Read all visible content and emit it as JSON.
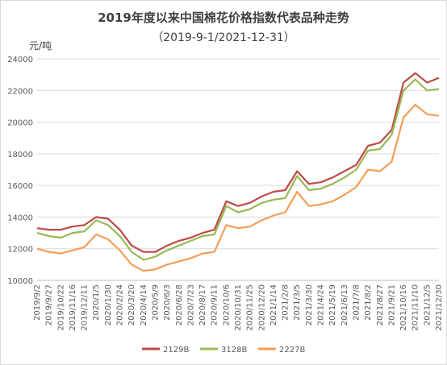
{
  "chart_data": {
    "type": "line",
    "title": "2019年度以来中国棉花价格指数代表品种走势",
    "subtitle": "（2019-9-1/2021-12-31）",
    "ylabel": "元/吨",
    "ylim": [
      10000,
      24000
    ],
    "yticks": [
      10000,
      12000,
      14000,
      16000,
      18000,
      20000,
      22000,
      24000
    ],
    "grid": true,
    "legend_position": "bottom",
    "categories": [
      "2019/9/2",
      "2019/9/27",
      "2019/10/22",
      "2019/11/16",
      "2019/12/11",
      "2020/1/5",
      "2020/1/30",
      "2020/2/24",
      "2020/3/20",
      "2020/4/14",
      "2020/5/9",
      "2020/6/3",
      "2020/6/28",
      "2020/7/23",
      "2020/8/17",
      "2020/9/11",
      "2020/10/6",
      "2020/10/31",
      "2020/11/25",
      "2020/12/20",
      "2021/1/14",
      "2021/2/8",
      "2021/3/5",
      "2021/3/30",
      "2021/4/24",
      "2021/5/19",
      "2021/6/13",
      "2021/7/8",
      "2021/8/2",
      "2021/8/27",
      "2021/9/21",
      "2021/10/16",
      "2021/11/10",
      "2021/12/5",
      "2021/12/30"
    ],
    "series": [
      {
        "name": "2129B",
        "color": "#be4b48",
        "values": [
          13300,
          13200,
          13200,
          13400,
          13500,
          14000,
          13900,
          13200,
          12200,
          11800,
          11800,
          12200,
          12500,
          12700,
          13000,
          13200,
          15000,
          14700,
          14900,
          15300,
          15600,
          15700,
          16900,
          16100,
          16200,
          16500,
          16900,
          17300,
          18500,
          18700,
          19500,
          22500,
          23100,
          22500,
          22800
        ]
      },
      {
        "name": "3128B",
        "color": "#98b954",
        "values": [
          13000,
          12800,
          12700,
          13000,
          13100,
          13800,
          13500,
          12800,
          11800,
          11300,
          11500,
          11900,
          12200,
          12500,
          12800,
          12900,
          14700,
          14300,
          14500,
          14900,
          15100,
          15200,
          16600,
          15700,
          15800,
          16100,
          16500,
          17000,
          18200,
          18300,
          19200,
          22000,
          22700,
          22000,
          22100
        ]
      },
      {
        "name": "2227B",
        "color": "#f59d56",
        "values": [
          12000,
          11800,
          11700,
          11900,
          12100,
          12900,
          12600,
          11900,
          11000,
          10600,
          10700,
          11000,
          11200,
          11400,
          11700,
          11800,
          13500,
          13300,
          13400,
          13800,
          14100,
          14300,
          15600,
          14700,
          14800,
          15000,
          15400,
          15900,
          17000,
          16900,
          17500,
          20300,
          21100,
          20500,
          20400
        ]
      }
    ]
  }
}
